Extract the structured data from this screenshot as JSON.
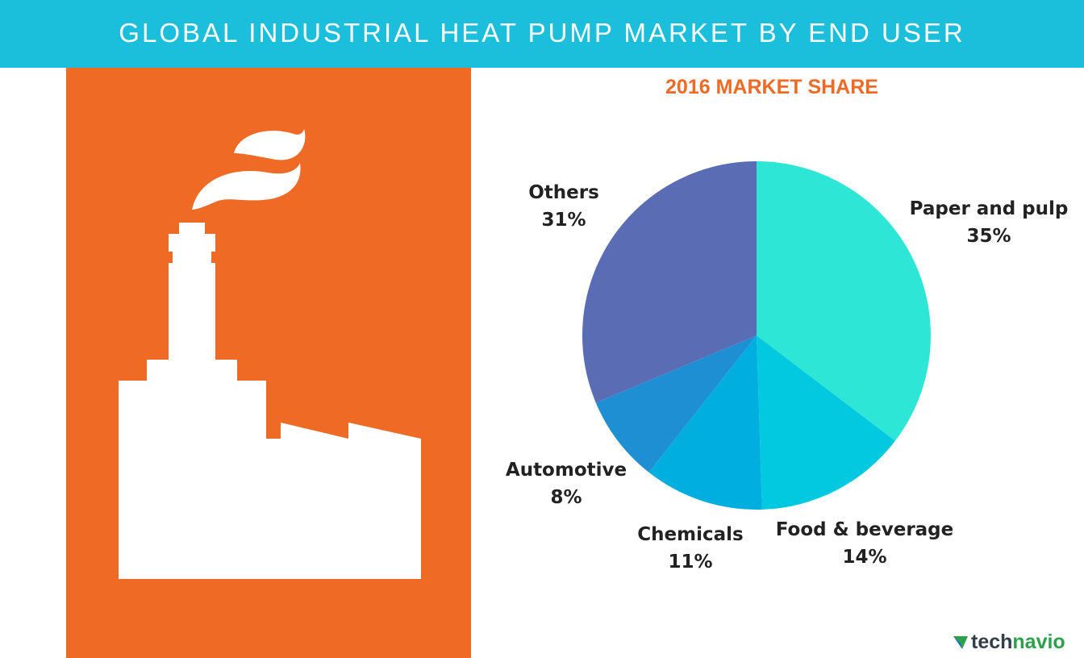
{
  "header": {
    "title": "GLOBAL INDUSTRIAL HEAT PUMP MARKET BY END USER"
  },
  "colors": {
    "banner": "#1bbfdc",
    "panel": "#ee6a25",
    "accent_text": "#ee6a25"
  },
  "illustration": {
    "icon": "factory-icon"
  },
  "chart_data": {
    "type": "pie",
    "title": "2016 MARKET SHARE",
    "slices": [
      {
        "label": "Paper and pulp",
        "value": 35,
        "display": "35%",
        "color": "#2ee6d6"
      },
      {
        "label": "Food & beverage",
        "value": 14,
        "display": "14%",
        "color": "#03c9e0"
      },
      {
        "label": "Chemicals",
        "value": 11,
        "display": "11%",
        "color": "#01aee0"
      },
      {
        "label": "Automotive",
        "value": 8,
        "display": "8%",
        "color": "#1e8fd2"
      },
      {
        "label": "Others",
        "value": 31,
        "display": "31%",
        "color": "#5a6cb3"
      }
    ]
  },
  "brand": {
    "part1": "tech",
    "part2": "navio"
  }
}
